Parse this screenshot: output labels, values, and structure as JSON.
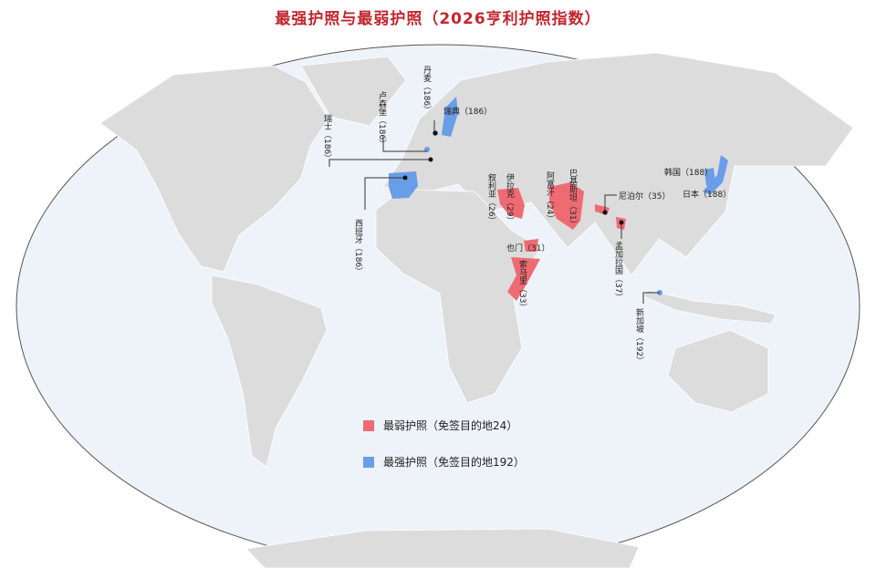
{
  "title": "最强护照与最弱护照（2026亨利护照指数）",
  "colors": {
    "weakest": "#ef6b73",
    "strongest": "#6a9de8",
    "ocean": "#eef3f9",
    "land": "#dcdcdc"
  },
  "legend": [
    {
      "key": "weakest",
      "label": "最弱护照（免签目的地24）"
    },
    {
      "key": "strongest",
      "label": "最强护照（免签目的地192）"
    }
  ],
  "countries": [
    {
      "name": "瑞士",
      "score": "（186）",
      "group": "strongest"
    },
    {
      "name": "卢森堡",
      "score": "（186）",
      "group": "strongest"
    },
    {
      "name": "丹麦",
      "score": "（186）",
      "group": "strongest"
    },
    {
      "name": "瑞典",
      "score": "（186）",
      "group": "strongest"
    },
    {
      "name": "西班牙",
      "score": "（186）",
      "group": "strongest"
    },
    {
      "name": "叙利亚",
      "score": "（26）",
      "group": "weakest"
    },
    {
      "name": "伊拉克",
      "score": "（29）",
      "group": "weakest"
    },
    {
      "name": "阿富汗",
      "score": "（24）",
      "group": "weakest"
    },
    {
      "name": "巴基斯坦",
      "score": "（31）",
      "group": "weakest"
    },
    {
      "name": "也门",
      "score": "（31）",
      "group": "weakest"
    },
    {
      "name": "索马里",
      "score": "（33）",
      "group": "weakest"
    },
    {
      "name": "尼泊尔",
      "score": "（35）",
      "group": "weakest"
    },
    {
      "name": "孟加拉国",
      "score": "（37）",
      "group": "weakest"
    },
    {
      "name": "新加坡",
      "score": "（192）",
      "group": "strongest"
    },
    {
      "name": "韩国",
      "score": "（188）",
      "group": "strongest"
    },
    {
      "name": "日本",
      "score": "（188）",
      "group": "strongest"
    }
  ]
}
